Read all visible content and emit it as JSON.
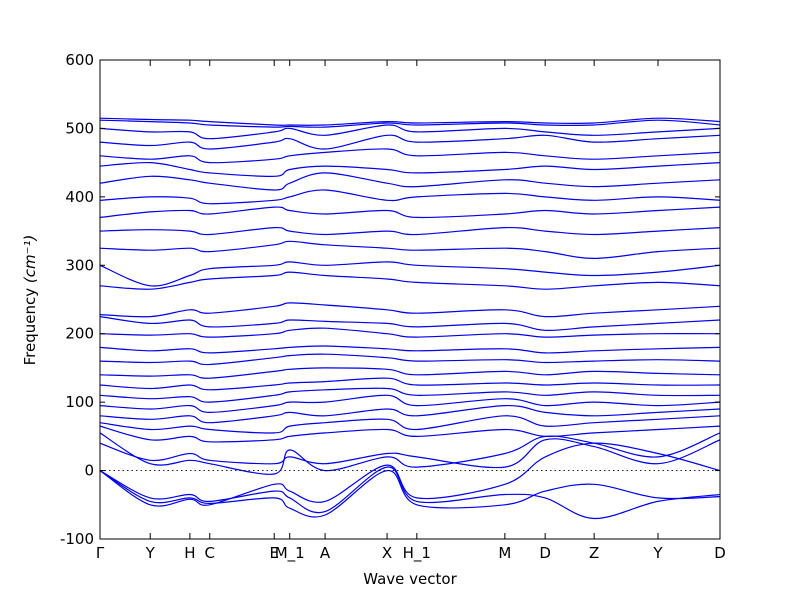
{
  "chart_data": {
    "type": "line",
    "xlabel": "Wave vector",
    "ylabel": "Frequency",
    "ylabel_unit": "(cm⁻¹)",
    "ylim": [
      -100,
      600
    ],
    "yticks": [
      -100,
      0,
      100,
      200,
      300,
      400,
      500,
      600
    ],
    "xlim": [
      0,
      1
    ],
    "kpoints": [
      {
        "label": "Γ",
        "x": 0.0
      },
      {
        "label": "Y",
        "x": 0.081
      },
      {
        "label": "H",
        "x": 0.145
      },
      {
        "label": "C",
        "x": 0.177
      },
      {
        "label": "E",
        "x": 0.281
      },
      {
        "label": "M_1",
        "x": 0.306
      },
      {
        "label": "A",
        "x": 0.363
      },
      {
        "label": "X",
        "x": 0.463
      },
      {
        "label": "H_1",
        "x": 0.511
      },
      {
        "label": "M",
        "x": 0.653
      },
      {
        "label": "D",
        "x": 0.718
      },
      {
        "label": "Z",
        "x": 0.797
      },
      {
        "label": "Y",
        "x": 0.9
      },
      {
        "label": "D",
        "x": 1.0
      }
    ],
    "zero_line": true,
    "line_color": "#0000ee",
    "series": [
      {
        "x": [
          0,
          0.081,
          0.145,
          0.177,
          0.281,
          0.306,
          0.363,
          0.463,
          0.511,
          0.653,
          0.718,
          0.797,
          0.9,
          1.0
        ],
        "y": [
          0,
          -40,
          -35,
          -45,
          -30,
          -40,
          -60,
          5,
          -45,
          -35,
          -40,
          -70,
          -45,
          -35
        ]
      },
      {
        "x": [
          0,
          0.081,
          0.145,
          0.177,
          0.281,
          0.306,
          0.363,
          0.463,
          0.511,
          0.653,
          0.718,
          0.797,
          0.9,
          1.0
        ],
        "y": [
          0,
          -45,
          -40,
          -48,
          -40,
          -55,
          -65,
          0,
          -50,
          -50,
          -30,
          -20,
          -40,
          -38
        ]
      },
      {
        "x": [
          0,
          0.081,
          0.145,
          0.177,
          0.281,
          0.306,
          0.363,
          0.463,
          0.511,
          0.653,
          0.718,
          0.797,
          0.9,
          1.0
        ],
        "y": [
          0,
          -50,
          -42,
          -50,
          -20,
          -30,
          -45,
          8,
          -40,
          -20,
          20,
          40,
          25,
          0
        ]
      },
      {
        "x": [
          0,
          0.081,
          0.145,
          0.177,
          0.281,
          0.306,
          0.363,
          0.463,
          0.511,
          0.653,
          0.718,
          0.797,
          0.9,
          1.0
        ],
        "y": [
          40,
          15,
          25,
          15,
          10,
          20,
          10,
          25,
          20,
          5,
          45,
          35,
          10,
          45
        ]
      },
      {
        "x": [
          0,
          0.081,
          0.145,
          0.177,
          0.281,
          0.306,
          0.363,
          0.463,
          0.511,
          0.653,
          0.718,
          0.797,
          0.9,
          1.0
        ],
        "y": [
          55,
          10,
          15,
          10,
          -5,
          30,
          0,
          20,
          5,
          25,
          50,
          40,
          20,
          55
        ]
      },
      {
        "x": [
          0,
          0.081,
          0.145,
          0.177,
          0.281,
          0.306,
          0.363,
          0.463,
          0.511,
          0.653,
          0.718,
          0.797,
          0.9,
          1.0
        ],
        "y": [
          65,
          45,
          50,
          42,
          45,
          50,
          55,
          60,
          50,
          60,
          50,
          55,
          60,
          65
        ]
      },
      {
        "x": [
          0,
          0.081,
          0.145,
          0.177,
          0.281,
          0.306,
          0.363,
          0.463,
          0.511,
          0.653,
          0.718,
          0.797,
          0.9,
          1.0
        ],
        "y": [
          70,
          60,
          65,
          60,
          55,
          65,
          70,
          75,
          60,
          80,
          65,
          70,
          75,
          80
        ]
      },
      {
        "x": [
          0,
          0.081,
          0.145,
          0.177,
          0.281,
          0.306,
          0.363,
          0.463,
          0.511,
          0.653,
          0.718,
          0.797,
          0.9,
          1.0
        ],
        "y": [
          80,
          75,
          80,
          70,
          80,
          85,
          80,
          90,
          80,
          95,
          85,
          80,
          85,
          90
        ]
      },
      {
        "x": [
          0,
          0.081,
          0.145,
          0.177,
          0.281,
          0.306,
          0.363,
          0.463,
          0.511,
          0.653,
          0.718,
          0.797,
          0.9,
          1.0
        ],
        "y": [
          95,
          90,
          95,
          85,
          95,
          100,
          100,
          110,
          95,
          105,
          95,
          100,
          95,
          100
        ]
      },
      {
        "x": [
          0,
          0.081,
          0.145,
          0.177,
          0.281,
          0.306,
          0.363,
          0.463,
          0.511,
          0.653,
          0.718,
          0.797,
          0.9,
          1.0
        ],
        "y": [
          110,
          105,
          108,
          100,
          110,
          115,
          118,
          120,
          110,
          115,
          110,
          115,
          110,
          110
        ]
      },
      {
        "x": [
          0,
          0.081,
          0.145,
          0.177,
          0.281,
          0.306,
          0.363,
          0.463,
          0.511,
          0.653,
          0.718,
          0.797,
          0.9,
          1.0
        ],
        "y": [
          125,
          120,
          125,
          118,
          125,
          128,
          130,
          135,
          125,
          128,
          125,
          128,
          125,
          125
        ]
      },
      {
        "x": [
          0,
          0.081,
          0.145,
          0.177,
          0.281,
          0.306,
          0.363,
          0.463,
          0.511,
          0.653,
          0.718,
          0.797,
          0.9,
          1.0
        ],
        "y": [
          140,
          138,
          140,
          135,
          145,
          148,
          150,
          148,
          140,
          145,
          140,
          145,
          142,
          140
        ]
      },
      {
        "x": [
          0,
          0.081,
          0.145,
          0.177,
          0.281,
          0.306,
          0.363,
          0.463,
          0.511,
          0.653,
          0.718,
          0.797,
          0.9,
          1.0
        ],
        "y": [
          160,
          158,
          160,
          155,
          165,
          168,
          170,
          165,
          160,
          162,
          158,
          160,
          162,
          160
        ]
      },
      {
        "x": [
          0,
          0.081,
          0.145,
          0.177,
          0.281,
          0.306,
          0.363,
          0.463,
          0.511,
          0.653,
          0.718,
          0.797,
          0.9,
          1.0
        ],
        "y": [
          180,
          175,
          178,
          172,
          178,
          180,
          182,
          178,
          175,
          178,
          172,
          175,
          178,
          180
        ]
      },
      {
        "x": [
          0,
          0.081,
          0.145,
          0.177,
          0.281,
          0.306,
          0.363,
          0.463,
          0.511,
          0.653,
          0.718,
          0.797,
          0.9,
          1.0
        ],
        "y": [
          200,
          198,
          200,
          195,
          200,
          205,
          208,
          200,
          195,
          200,
          195,
          198,
          200,
          200
        ]
      },
      {
        "x": [
          0,
          0.081,
          0.145,
          0.177,
          0.281,
          0.306,
          0.363,
          0.463,
          0.511,
          0.653,
          0.718,
          0.797,
          0.9,
          1.0
        ],
        "y": [
          225,
          215,
          220,
          210,
          215,
          220,
          218,
          215,
          210,
          215,
          205,
          210,
          215,
          220
        ]
      },
      {
        "x": [
          0,
          0.081,
          0.145,
          0.177,
          0.281,
          0.306,
          0.363,
          0.463,
          0.511,
          0.653,
          0.718,
          0.797,
          0.9,
          1.0
        ],
        "y": [
          228,
          225,
          235,
          230,
          240,
          245,
          242,
          235,
          230,
          235,
          225,
          230,
          235,
          240
        ]
      },
      {
        "x": [
          0,
          0.081,
          0.145,
          0.177,
          0.281,
          0.306,
          0.363,
          0.463,
          0.511,
          0.653,
          0.718,
          0.797,
          0.9,
          1.0
        ],
        "y": [
          270,
          265,
          275,
          280,
          285,
          290,
          285,
          280,
          275,
          270,
          265,
          270,
          275,
          270
        ]
      },
      {
        "x": [
          0,
          0.081,
          0.145,
          0.177,
          0.281,
          0.306,
          0.363,
          0.463,
          0.511,
          0.653,
          0.718,
          0.797,
          0.9,
          1.0
        ],
        "y": [
          300,
          270,
          285,
          295,
          300,
          305,
          300,
          305,
          300,
          295,
          290,
          285,
          290,
          300
        ]
      },
      {
        "x": [
          0,
          0.081,
          0.145,
          0.177,
          0.281,
          0.306,
          0.363,
          0.463,
          0.511,
          0.653,
          0.718,
          0.797,
          0.9,
          1.0
        ],
        "y": [
          325,
          322,
          325,
          320,
          330,
          335,
          330,
          325,
          322,
          325,
          320,
          310,
          320,
          325
        ]
      },
      {
        "x": [
          0,
          0.081,
          0.145,
          0.177,
          0.281,
          0.306,
          0.363,
          0.463,
          0.511,
          0.653,
          0.718,
          0.797,
          0.9,
          1.0
        ],
        "y": [
          350,
          352,
          350,
          345,
          355,
          350,
          345,
          350,
          345,
          355,
          350,
          345,
          350,
          355
        ]
      },
      {
        "x": [
          0,
          0.081,
          0.145,
          0.177,
          0.281,
          0.306,
          0.363,
          0.463,
          0.511,
          0.653,
          0.718,
          0.797,
          0.9,
          1.0
        ],
        "y": [
          370,
          378,
          380,
          375,
          385,
          380,
          375,
          380,
          370,
          375,
          380,
          375,
          380,
          385
        ]
      },
      {
        "x": [
          0,
          0.081,
          0.145,
          0.177,
          0.281,
          0.306,
          0.363,
          0.463,
          0.511,
          0.653,
          0.718,
          0.797,
          0.9,
          1.0
        ],
        "y": [
          395,
          400,
          398,
          390,
          395,
          400,
          410,
          395,
          400,
          405,
          400,
          395,
          400,
          395
        ]
      },
      {
        "x": [
          0,
          0.081,
          0.145,
          0.177,
          0.281,
          0.306,
          0.363,
          0.463,
          0.511,
          0.653,
          0.718,
          0.797,
          0.9,
          1.0
        ],
        "y": [
          420,
          430,
          425,
          420,
          410,
          420,
          435,
          420,
          415,
          425,
          420,
          415,
          420,
          425
        ]
      },
      {
        "x": [
          0,
          0.081,
          0.145,
          0.177,
          0.281,
          0.306,
          0.363,
          0.463,
          0.511,
          0.653,
          0.718,
          0.797,
          0.9,
          1.0
        ],
        "y": [
          445,
          450,
          440,
          435,
          430,
          440,
          445,
          440,
          435,
          440,
          445,
          440,
          445,
          450
        ]
      },
      {
        "x": [
          0,
          0.081,
          0.145,
          0.177,
          0.281,
          0.306,
          0.363,
          0.463,
          0.511,
          0.653,
          0.718,
          0.797,
          0.9,
          1.0
        ],
        "y": [
          460,
          455,
          460,
          450,
          455,
          460,
          465,
          470,
          460,
          465,
          460,
          455,
          460,
          465
        ]
      },
      {
        "x": [
          0,
          0.081,
          0.145,
          0.177,
          0.281,
          0.306,
          0.363,
          0.463,
          0.511,
          0.653,
          0.718,
          0.797,
          0.9,
          1.0
        ],
        "y": [
          480,
          475,
          480,
          470,
          480,
          485,
          470,
          490,
          480,
          485,
          490,
          480,
          485,
          490
        ]
      },
      {
        "x": [
          0,
          0.081,
          0.145,
          0.177,
          0.281,
          0.306,
          0.363,
          0.463,
          0.511,
          0.653,
          0.718,
          0.797,
          0.9,
          1.0
        ],
        "y": [
          500,
          495,
          495,
          485,
          495,
          500,
          490,
          505,
          495,
          500,
          495,
          490,
          495,
          500
        ]
      },
      {
        "x": [
          0,
          0.081,
          0.145,
          0.177,
          0.281,
          0.306,
          0.363,
          0.463,
          0.511,
          0.653,
          0.718,
          0.797,
          0.9,
          1.0
        ],
        "y": [
          512,
          510,
          508,
          505,
          502,
          503,
          502,
          508,
          505,
          508,
          505,
          505,
          512,
          505
        ]
      },
      {
        "x": [
          0,
          0.081,
          0.145,
          0.177,
          0.281,
          0.306,
          0.363,
          0.463,
          0.511,
          0.653,
          0.718,
          0.797,
          0.9,
          1.0
        ],
        "y": [
          515,
          513,
          512,
          510,
          505,
          505,
          505,
          510,
          508,
          510,
          508,
          508,
          515,
          510
        ]
      }
    ]
  }
}
